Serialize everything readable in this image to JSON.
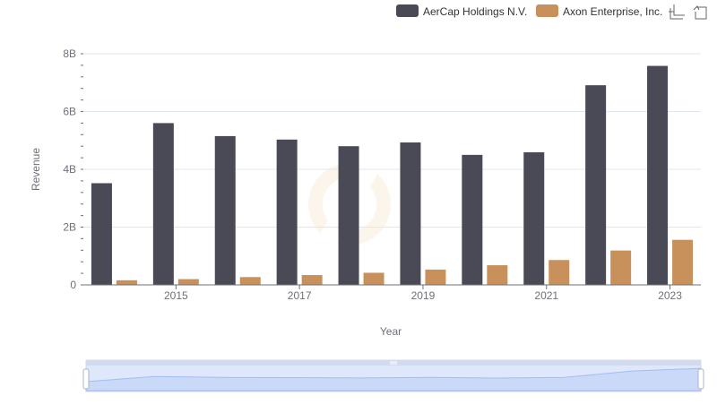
{
  "chart_data": {
    "type": "bar",
    "categories": [
      "2014",
      "2015",
      "2016",
      "2017",
      "2018",
      "2019",
      "2020",
      "2021",
      "2022",
      "2023"
    ],
    "x_tick_labels": [
      "2015",
      "2017",
      "2019",
      "2021",
      "2023"
    ],
    "series": [
      {
        "name": "AerCap Holdings N.V.",
        "color": "#4a4a56",
        "values": [
          3.52,
          5.6,
          5.15,
          5.03,
          4.8,
          4.93,
          4.5,
          4.59,
          6.91,
          7.58
        ]
      },
      {
        "name": "Axon Enterprise, Inc.",
        "color": "#c8915b",
        "values": [
          0.16,
          0.2,
          0.27,
          0.34,
          0.42,
          0.53,
          0.68,
          0.86,
          1.19,
          1.56
        ]
      }
    ],
    "xlabel": "Year",
    "ylabel": "Revenue",
    "ylim": [
      0,
      8
    ],
    "y_ticks": [
      0,
      2,
      4,
      6,
      8
    ],
    "y_tick_labels": [
      "0",
      "2B",
      "4B",
      "6B",
      "8B"
    ],
    "grid": true,
    "legend_position": "top-right",
    "toolbox": [
      "zoom-icon",
      "restore-icon"
    ],
    "data_zoom": {
      "range_percent": [
        0,
        100
      ]
    }
  }
}
